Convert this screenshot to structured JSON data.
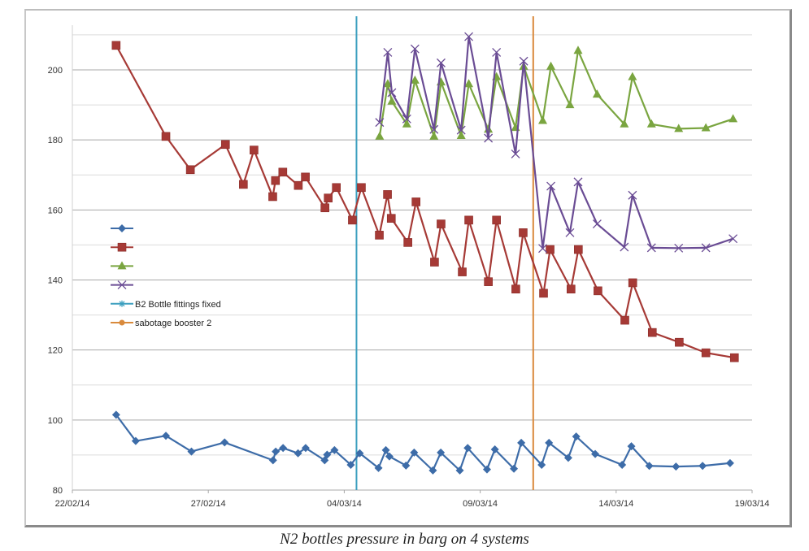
{
  "chart_data": {
    "type": "line",
    "title": "",
    "caption": "N2 bottles pressure in barg on 4 systems",
    "xlabel": "",
    "ylabel": "",
    "x_unit": "days since 22/02/14",
    "xlim": [
      0,
      25
    ],
    "ylim": [
      80,
      210
    ],
    "yticks": [
      80,
      100,
      120,
      140,
      160,
      180,
      200
    ],
    "xticks": [
      {
        "day": 0,
        "label": "22/02/14"
      },
      {
        "day": 5,
        "label": "27/02/14"
      },
      {
        "day": 10,
        "label": "04/03/14"
      },
      {
        "day": 15,
        "label": "09/03/14"
      },
      {
        "day": 20,
        "label": "14/03/14"
      },
      {
        "day": 25,
        "label": "19/03/14"
      }
    ],
    "grid": "horizontal major and minor",
    "legend_position": "left-middle",
    "series": [
      {
        "name": "",
        "color": "#3d6ca8",
        "marker": "diamond",
        "x": [
          1.61,
          2.33,
          3.44,
          4.38,
          5.6,
          7.38,
          7.48,
          7.75,
          8.3,
          8.58,
          9.28,
          9.37,
          9.64,
          10.24,
          10.57,
          11.26,
          11.53,
          11.66,
          12.27,
          12.57,
          13.26,
          13.55,
          14.25,
          14.54,
          15.25,
          15.54,
          16.24,
          16.51,
          17.26,
          17.53,
          18.24,
          18.53,
          19.23,
          20.22,
          20.56,
          21.22,
          22.2,
          23.18,
          24.19
        ],
        "y": [
          101.5,
          94,
          95.5,
          91,
          93.6,
          88.5,
          91,
          92,
          90.5,
          92,
          88.5,
          90.1,
          91.4,
          87.2,
          90.5,
          86.3,
          91.4,
          89.6,
          87,
          90.7,
          85.6,
          90.7,
          85.6,
          92,
          85.9,
          91.6,
          86.1,
          93.5,
          87.2,
          93.5,
          89.2,
          95.3,
          90.3,
          87.2,
          92.5,
          86.9,
          86.7,
          86.9,
          87.7
        ]
      },
      {
        "name": "",
        "color": "#a63a36",
        "marker": "square",
        "x": [
          1.61,
          3.44,
          4.34,
          5.63,
          6.29,
          6.68,
          7.37,
          7.47,
          7.74,
          8.31,
          8.57,
          9.29,
          9.41,
          9.71,
          10.3,
          10.63,
          11.29,
          11.59,
          11.73,
          12.34,
          12.64,
          13.32,
          13.56,
          14.34,
          14.58,
          15.3,
          15.6,
          16.31,
          16.58,
          17.33,
          17.57,
          18.34,
          18.61,
          19.33,
          20.32,
          20.61,
          21.33,
          22.32,
          23.3,
          24.35
        ],
        "y": [
          207,
          181,
          171.5,
          178.7,
          167.3,
          177.1,
          163.8,
          168.4,
          170.8,
          167,
          169.4,
          160.6,
          163.4,
          166.4,
          157.1,
          166.4,
          152.8,
          164.4,
          157.6,
          150.7,
          162.3,
          145.1,
          156,
          142.3,
          157.1,
          139.5,
          157.1,
          137.4,
          153.5,
          136.2,
          148.7,
          137.4,
          148.7,
          136.9,
          128.5,
          139.2,
          125,
          122.2,
          119.2,
          117.8
        ]
      },
      {
        "name": "",
        "color": "#7aa540",
        "marker": "triangle",
        "x": [
          11.3,
          11.6,
          11.75,
          12.3,
          12.6,
          13.3,
          13.56,
          14.3,
          14.58,
          15.3,
          15.6,
          16.3,
          16.6,
          17.3,
          17.6,
          18.3,
          18.6,
          19.3,
          20.3,
          20.6,
          21.3,
          22.3,
          23.3,
          24.3
        ],
        "y": [
          181,
          196,
          191,
          184.5,
          197,
          181,
          196.5,
          181.2,
          196,
          183,
          198,
          183.5,
          201,
          185.5,
          201,
          190,
          205.5,
          193,
          184.5,
          198,
          184.5,
          183.2,
          183.4,
          186
        ]
      },
      {
        "name": "",
        "color": "#6a4c94",
        "marker": "x",
        "x": [
          11.3,
          11.6,
          11.75,
          12.3,
          12.6,
          13.3,
          13.56,
          14.3,
          14.58,
          15.3,
          15.6,
          16.3,
          16.6,
          17.3,
          17.6,
          18.3,
          18.6,
          19.3,
          20.3,
          20.6,
          21.3,
          22.3,
          23.3,
          24.3
        ],
        "y": [
          185,
          205,
          193.5,
          186,
          206,
          183,
          202,
          182.8,
          209.5,
          180.5,
          205,
          176,
          202.5,
          149,
          166.8,
          153.5,
          168,
          156,
          149.4,
          164.2,
          149.2,
          149.1,
          149.2,
          151.8
        ]
      }
    ],
    "events": [
      {
        "label": "B2 Bottle fittings fixed",
        "day": 10.45,
        "color": "#3c9fbf",
        "marker": "asterisk"
      },
      {
        "label": "sabotage booster 2",
        "day": 16.95,
        "color": "#d98a3c",
        "marker": "circle"
      }
    ]
  }
}
